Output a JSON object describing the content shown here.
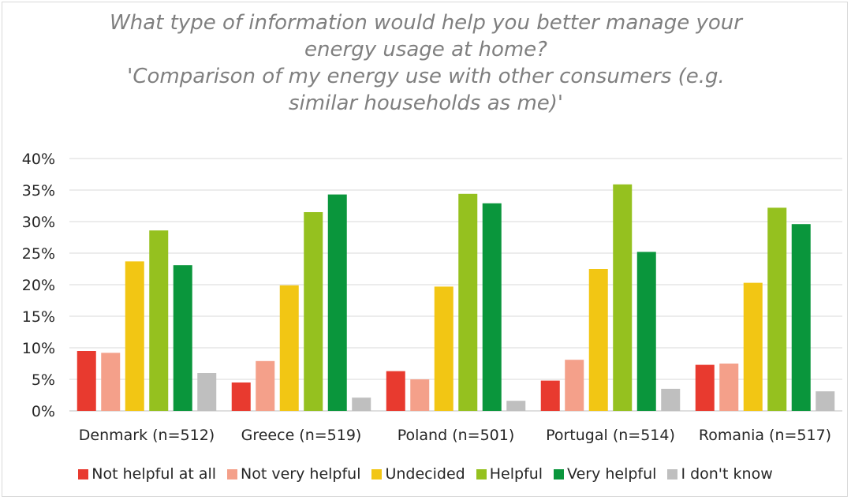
{
  "chart_data": {
    "type": "bar",
    "title_lines": [
      "What type of information would help you better manage your",
      "energy usage at home?",
      "'Comparison of my energy use with other consumers (e.g.",
      "similar households as me)'"
    ],
    "categories": [
      "Denmark (n=512)",
      "Greece (n=519)",
      "Poland (n=501)",
      "Portugal (n=514)",
      "Romania (n=517)"
    ],
    "y_ticks": [
      "0%",
      "5%",
      "10%",
      "15%",
      "20%",
      "25%",
      "30%",
      "35%",
      "40%"
    ],
    "ylim": [
      0,
      40
    ],
    "y_unit": "%",
    "grid": true,
    "legend_position": "bottom",
    "series": [
      {
        "name": "Not helpful at all",
        "color": "#e83a2f",
        "values": [
          9.5,
          4.5,
          6.3,
          4.8,
          7.3
        ]
      },
      {
        "name": "Not very helpful",
        "color": "#f4a08a",
        "values": [
          9.2,
          7.9,
          5.0,
          8.1,
          7.5
        ]
      },
      {
        "name": "Undecided",
        "color": "#f2c614",
        "values": [
          23.7,
          19.9,
          19.7,
          22.5,
          20.3
        ]
      },
      {
        "name": "Helpful",
        "color": "#95c11f",
        "values": [
          28.6,
          31.5,
          34.4,
          35.9,
          32.2
        ]
      },
      {
        "name": "Very helpful",
        "color": "#0a963c",
        "values": [
          23.1,
          34.3,
          32.9,
          25.2,
          29.6
        ]
      },
      {
        "name": "I don't know",
        "color": "#bfbfbf",
        "values": [
          6.0,
          2.1,
          1.6,
          3.5,
          3.1
        ]
      }
    ]
  }
}
